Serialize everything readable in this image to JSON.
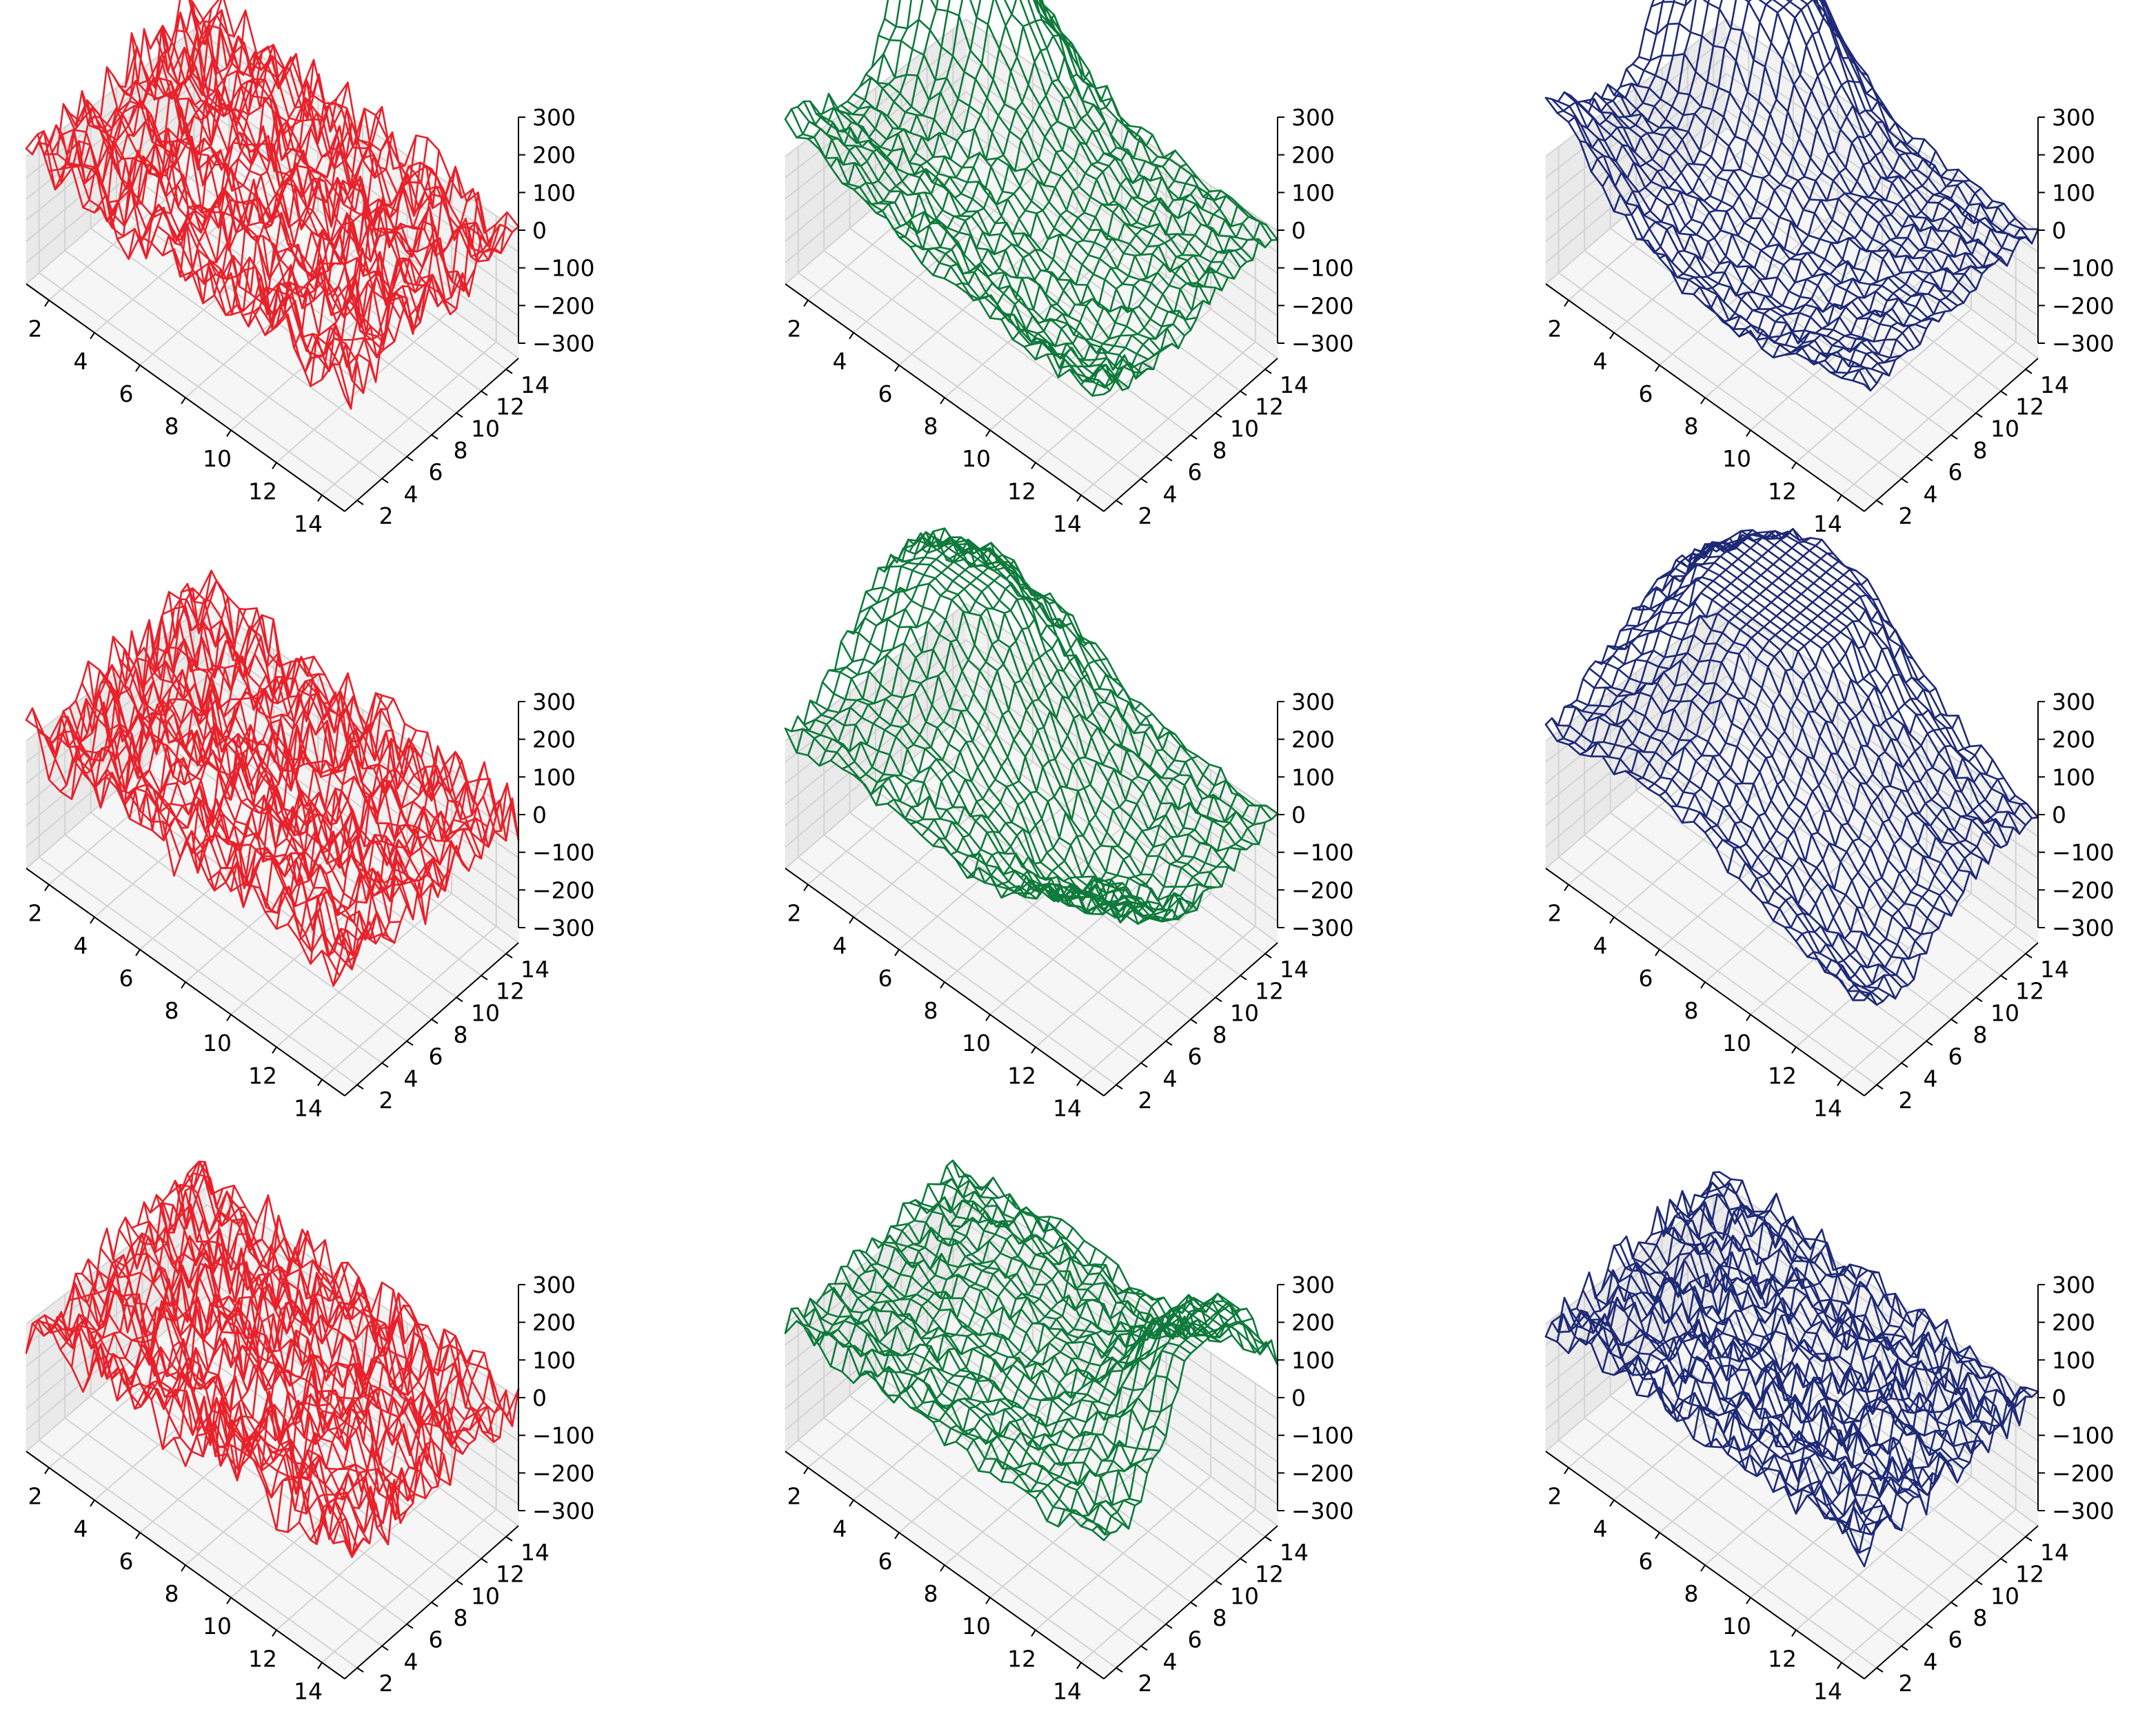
{
  "chart_data": {
    "type": "surface-wireframe-grid",
    "rows": 3,
    "cols": 3,
    "x_ticks": [
      "2",
      "4",
      "6",
      "8",
      "10",
      "12",
      "14"
    ],
    "y_ticks": [
      "2",
      "4",
      "6",
      "8",
      "10",
      "12",
      "14"
    ],
    "z_ticks": [
      "300",
      "200",
      "100",
      "0",
      "−100",
      "−200",
      "−300"
    ],
    "xlim": [
      1,
      15
    ],
    "ylim": [
      1,
      15
    ],
    "zlim": [
      -300,
      300
    ],
    "grid": true,
    "panels": [
      {
        "name": "row1-col1",
        "color": "#e8212b",
        "shape": "noise",
        "noise": 45,
        "components": []
      },
      {
        "name": "row1-col2",
        "color": "#0e7a3b",
        "shape": "surface",
        "noise": 18,
        "components": [
          {
            "amp": 560,
            "cx": 3,
            "cy": 12,
            "sx": 2.6,
            "sy": 2.0
          },
          {
            "amp": 90,
            "cx": 1,
            "cy": 1,
            "sx": 2.0,
            "sy": 3.0
          },
          {
            "amp": -120,
            "cx": 12,
            "cy": 5,
            "sx": 3.0,
            "sy": 3.0
          }
        ]
      },
      {
        "name": "row1-col3",
        "color": "#1f2a77",
        "shape": "surface",
        "noise": 15,
        "components": [
          {
            "amp": 620,
            "cx": 4,
            "cy": 12,
            "sx": 2.5,
            "sy": 2.0
          },
          {
            "amp": 150,
            "cx": 1,
            "cy": 1,
            "sx": 1.6,
            "sy": 2.6
          },
          {
            "amp": -130,
            "cx": 9,
            "cy": 3,
            "sx": 3.0,
            "sy": 3.0
          }
        ]
      },
      {
        "name": "row2-col1",
        "color": "#e8212b",
        "shape": "noise",
        "noise": 45,
        "components": []
      },
      {
        "name": "row2-col2",
        "color": "#0e7a3b",
        "shape": "surface",
        "noise": 18,
        "components": [
          {
            "amp": 380,
            "cx": 4,
            "cy": 10,
            "sx": 3.2,
            "sy": 3.6
          },
          {
            "amp": 200,
            "cx": 15,
            "cy": 2,
            "sx": 2.5,
            "sy": 4.0
          },
          {
            "amp": -200,
            "cx": 12,
            "cy": 7,
            "sx": 3.0,
            "sy": 3.0
          }
        ]
      },
      {
        "name": "row2-col3",
        "color": "#1f2a77",
        "shape": "surface",
        "noise": 15,
        "components": [
          {
            "amp": 450,
            "cx": 6,
            "cy": 11,
            "sx": 3.5,
            "sy": 5.0
          },
          {
            "amp": -150,
            "cx": 14,
            "cy": 4,
            "sx": 3.0,
            "sy": 3.0
          }
        ]
      },
      {
        "name": "row3-col1",
        "color": "#e8212b",
        "shape": "noise",
        "noise": 45,
        "components": []
      },
      {
        "name": "row3-col2",
        "color": "#0e7a3b",
        "shape": "surface",
        "noise": 20,
        "components": [
          {
            "amp": 450,
            "cx": 15,
            "cy": 10,
            "sx": 2.2,
            "sy": 3.0
          },
          {
            "amp": 80,
            "cx": 6,
            "cy": 12,
            "sx": 3.0,
            "sy": 3.0
          }
        ]
      },
      {
        "name": "row3-col3",
        "color": "#1f2a77",
        "shape": "noise",
        "noise": 28,
        "components": []
      }
    ]
  }
}
